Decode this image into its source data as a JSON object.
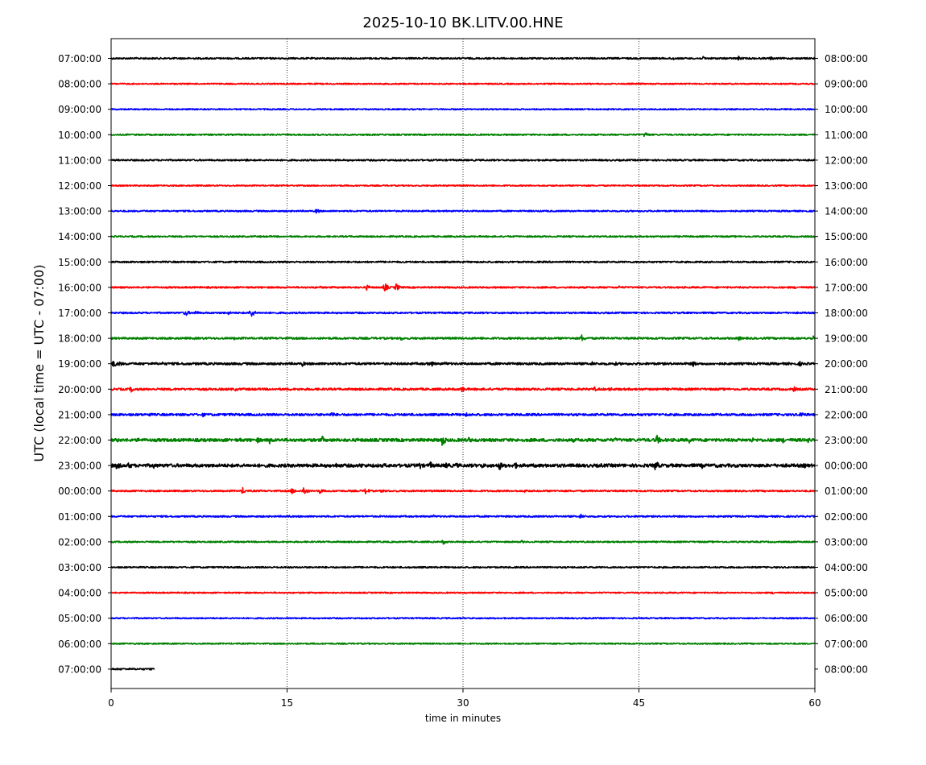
{
  "chart_data": {
    "type": "line",
    "title": "2025-10-10 BK.LITV.00.HNE",
    "xlabel": "time in minutes",
    "ylabel": "UTC (local time = UTC - 07:00)",
    "xlim": [
      0,
      60
    ],
    "x_ticks": [
      0,
      15,
      30,
      45,
      60
    ],
    "grid": "vertical-dotted",
    "trace_colors": [
      "#000000",
      "#ff0000",
      "#0000ff",
      "#008000"
    ],
    "left_labels": [
      "07:00:00",
      "08:00:00",
      "09:00:00",
      "10:00:00",
      "11:00:00",
      "12:00:00",
      "13:00:00",
      "14:00:00",
      "15:00:00",
      "16:00:00",
      "17:00:00",
      "18:00:00",
      "19:00:00",
      "20:00:00",
      "21:00:00",
      "22:00:00",
      "23:00:00",
      "00:00:00",
      "01:00:00",
      "02:00:00",
      "03:00:00",
      "04:00:00",
      "05:00:00",
      "06:00:00",
      "07:00:00"
    ],
    "right_labels": [
      "08:00:00",
      "09:00:00",
      "10:00:00",
      "11:00:00",
      "12:00:00",
      "13:00:00",
      "14:00:00",
      "15:00:00",
      "16:00:00",
      "17:00:00",
      "18:00:00",
      "19:00:00",
      "20:00:00",
      "21:00:00",
      "22:00:00",
      "23:00:00",
      "00:00:00",
      "01:00:00",
      "02:00:00",
      "03:00:00",
      "04:00:00",
      "05:00:00",
      "06:00:00",
      "07:00:00",
      "08:00:00"
    ],
    "traces": [
      {
        "noise": 1.0,
        "end": 60,
        "events": [
          [
            47.8,
            3
          ],
          [
            50.5,
            2.5
          ],
          [
            53.5,
            3
          ],
          [
            56.2,
            2.5
          ]
        ]
      },
      {
        "noise": 0.8,
        "end": 60,
        "events": []
      },
      {
        "noise": 0.8,
        "end": 60,
        "events": []
      },
      {
        "noise": 0.9,
        "end": 60,
        "events": [
          [
            45.5,
            4
          ]
        ]
      },
      {
        "noise": 1.0,
        "end": 60,
        "events": [
          [
            11.5,
            2
          ]
        ]
      },
      {
        "noise": 0.8,
        "end": 60,
        "events": []
      },
      {
        "noise": 0.9,
        "end": 60,
        "events": [
          [
            17.5,
            3.5
          ]
        ]
      },
      {
        "noise": 0.9,
        "end": 60,
        "events": []
      },
      {
        "noise": 1.0,
        "end": 60,
        "events": []
      },
      {
        "noise": 1.0,
        "end": 60,
        "events": [
          [
            17.8,
            2
          ],
          [
            21.8,
            3.5
          ],
          [
            23.3,
            6
          ],
          [
            24.3,
            5
          ],
          [
            43.3,
            2
          ],
          [
            58.3,
            2
          ]
        ]
      },
      {
        "noise": 1.0,
        "end": 60,
        "events": [
          [
            6.3,
            5
          ],
          [
            7.2,
            3
          ],
          [
            10,
            2.5
          ],
          [
            11.9,
            6.5
          ]
        ]
      },
      {
        "noise": 1.2,
        "end": 60,
        "events": [
          [
            10.5,
            2
          ],
          [
            24.7,
            3
          ],
          [
            35,
            2.5
          ],
          [
            40.1,
            5
          ],
          [
            53.5,
            3
          ],
          [
            59.8,
            4
          ]
        ]
      },
      {
        "noise": 1.4,
        "end": 60,
        "events": [
          [
            0.2,
            5
          ],
          [
            0.7,
            3.5
          ],
          [
            4.3,
            3
          ],
          [
            6.3,
            2.5
          ],
          [
            16.3,
            3.5
          ],
          [
            27.2,
            5
          ],
          [
            28.5,
            3
          ],
          [
            41,
            3
          ],
          [
            43,
            2.5
          ],
          [
            49.6,
            4
          ],
          [
            58.7,
            3.5
          ]
        ]
      },
      {
        "noise": 1.3,
        "end": 60,
        "events": [
          [
            1.7,
            4
          ],
          [
            10.6,
            2.5
          ],
          [
            15.2,
            2
          ],
          [
            23.2,
            2
          ],
          [
            29.9,
            4.5
          ],
          [
            41.2,
            3
          ],
          [
            42.5,
            3
          ],
          [
            58.2,
            3.5
          ]
        ]
      },
      {
        "noise": 1.4,
        "end": 60,
        "events": [
          [
            3.2,
            3
          ],
          [
            7.8,
            3
          ],
          [
            10.1,
            2
          ],
          [
            18.8,
            4
          ],
          [
            25.3,
            2.5
          ],
          [
            30.3,
            3
          ],
          [
            50.5,
            2.5
          ],
          [
            58.8,
            5
          ]
        ]
      },
      {
        "noise": 1.9,
        "end": 60,
        "events": [
          [
            0.5,
            3
          ],
          [
            2.3,
            3.5
          ],
          [
            11,
            3
          ],
          [
            12.5,
            4
          ],
          [
            13.5,
            5
          ],
          [
            18,
            5
          ],
          [
            21,
            3
          ],
          [
            26.5,
            3
          ],
          [
            28.2,
            8
          ],
          [
            30.5,
            4
          ],
          [
            33.7,
            3
          ],
          [
            39.4,
            3
          ],
          [
            43,
            3
          ],
          [
            46.5,
            7
          ],
          [
            49.3,
            4
          ],
          [
            54.6,
            4
          ],
          [
            57.3,
            4
          ],
          [
            59.4,
            4
          ]
        ]
      },
      {
        "noise": 2.0,
        "end": 60,
        "events": [
          [
            0.5,
            6
          ],
          [
            1.5,
            5
          ],
          [
            3.6,
            4
          ],
          [
            4.7,
            3
          ],
          [
            19.2,
            3.5
          ],
          [
            21.3,
            3.5
          ],
          [
            23.3,
            3.5
          ],
          [
            26.3,
            5
          ],
          [
            27.2,
            5
          ],
          [
            28.6,
            5
          ],
          [
            29.4,
            4
          ],
          [
            31.6,
            4
          ],
          [
            33.1,
            6
          ],
          [
            34.4,
            5
          ],
          [
            36.2,
            3
          ],
          [
            41.8,
            3
          ],
          [
            46.4,
            7
          ],
          [
            50.4,
            4
          ],
          [
            51.7,
            3
          ],
          [
            57.2,
            3
          ],
          [
            59.1,
            3.5
          ]
        ]
      },
      {
        "noise": 1.0,
        "end": 60,
        "events": [
          [
            11.2,
            4.5
          ],
          [
            15.4,
            4
          ],
          [
            16.4,
            6
          ],
          [
            17.8,
            3.5
          ],
          [
            21.7,
            4.5
          ],
          [
            23.1,
            3
          ],
          [
            35.3,
            2.5
          ]
        ]
      },
      {
        "noise": 1.0,
        "end": 60,
        "events": [
          [
            15.1,
            2
          ],
          [
            27.5,
            2
          ],
          [
            40,
            3.5
          ]
        ]
      },
      {
        "noise": 0.9,
        "end": 60,
        "events": [
          [
            28.3,
            3.5
          ],
          [
            35,
            2
          ]
        ]
      },
      {
        "noise": 0.9,
        "end": 60,
        "events": []
      },
      {
        "noise": 0.8,
        "end": 60,
        "events": [
          [
            56.4,
            2
          ]
        ]
      },
      {
        "noise": 0.8,
        "end": 60,
        "events": []
      },
      {
        "noise": 0.8,
        "end": 60,
        "events": []
      },
      {
        "noise": 1.0,
        "end": 3.7,
        "events": []
      }
    ]
  }
}
